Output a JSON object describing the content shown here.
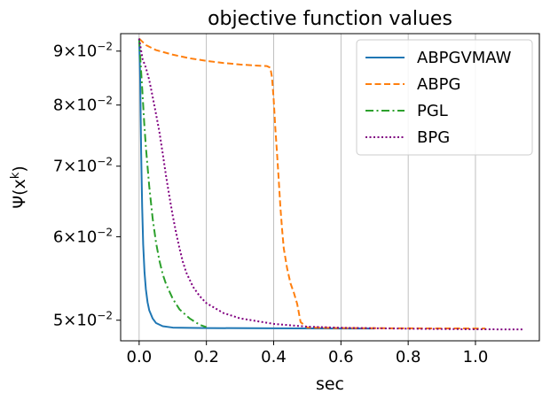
{
  "chart_data": {
    "type": "line",
    "title": "objective function values",
    "xlabel": "sec",
    "ylabel": "Ψ(x^k)",
    "ylabel_base": "Ψ(x",
    "ylabel_sup": "k",
    "ylabel_close": ")",
    "yscale": "log",
    "xlim": [
      -0.055,
      1.19
    ],
    "ylim": [
      0.0478,
      0.0935
    ],
    "grid": "x-only",
    "legend_position": "top-right",
    "x_ticks": [
      {
        "value": 0.0,
        "label": "0.0"
      },
      {
        "value": 0.2,
        "label": "0.2"
      },
      {
        "value": 0.4,
        "label": "0.4"
      },
      {
        "value": 0.6,
        "label": "0.6"
      },
      {
        "value": 0.8,
        "label": "0.8"
      },
      {
        "value": 1.0,
        "label": "1.0"
      }
    ],
    "y_ticks": [
      {
        "value": 0.09,
        "mant": "9",
        "exp": "−2"
      },
      {
        "value": 0.08,
        "mant": "8",
        "exp": "−2"
      },
      {
        "value": 0.07,
        "mant": "7",
        "exp": "−2"
      },
      {
        "value": 0.06,
        "mant": "6",
        "exp": "−2"
      },
      {
        "value": 0.05,
        "mant": "5",
        "exp": "−2"
      }
    ],
    "series": [
      {
        "name": "ABPGVMAW",
        "color": "#1f77b4",
        "dash": "solid",
        "points": [
          [
            0.0,
            0.0925
          ],
          [
            0.003,
            0.085
          ],
          [
            0.006,
            0.072
          ],
          [
            0.009,
            0.064
          ],
          [
            0.012,
            0.059
          ],
          [
            0.016,
            0.0555
          ],
          [
            0.02,
            0.0535
          ],
          [
            0.025,
            0.052
          ],
          [
            0.03,
            0.0511
          ],
          [
            0.04,
            0.0502
          ],
          [
            0.05,
            0.0497
          ],
          [
            0.07,
            0.04935
          ],
          [
            0.1,
            0.0492
          ],
          [
            0.2,
            0.04915
          ],
          [
            0.4,
            0.04912
          ],
          [
            0.6,
            0.0491
          ],
          [
            0.7,
            0.0491
          ]
        ]
      },
      {
        "name": "ABPG",
        "color": "#ff7f0e",
        "dash": "dashed",
        "points": [
          [
            0.0,
            0.0925
          ],
          [
            0.02,
            0.0912
          ],
          [
            0.05,
            0.0902
          ],
          [
            0.1,
            0.0893
          ],
          [
            0.15,
            0.0886
          ],
          [
            0.2,
            0.0881
          ],
          [
            0.25,
            0.0877
          ],
          [
            0.3,
            0.0874
          ],
          [
            0.35,
            0.0872
          ],
          [
            0.38,
            0.0871
          ],
          [
            0.39,
            0.0868
          ],
          [
            0.395,
            0.085
          ],
          [
            0.4,
            0.081
          ],
          [
            0.405,
            0.076
          ],
          [
            0.41,
            0.072
          ],
          [
            0.415,
            0.068
          ],
          [
            0.42,
            0.064
          ],
          [
            0.425,
            0.061
          ],
          [
            0.43,
            0.0585
          ],
          [
            0.44,
            0.056
          ],
          [
            0.45,
            0.0542
          ],
          [
            0.46,
            0.0531
          ],
          [
            0.47,
            0.0518
          ],
          [
            0.48,
            0.0498
          ],
          [
            0.5,
            0.0492
          ],
          [
            0.6,
            0.04915
          ],
          [
            0.8,
            0.04912
          ],
          [
            1.03,
            0.0491
          ]
        ]
      },
      {
        "name": "PGL",
        "color": "#2ca02c",
        "dash": "dashdot",
        "points": [
          [
            0.0,
            0.0925
          ],
          [
            0.005,
            0.087
          ],
          [
            0.01,
            0.082
          ],
          [
            0.015,
            0.077
          ],
          [
            0.02,
            0.073
          ],
          [
            0.03,
            0.067
          ],
          [
            0.04,
            0.0625
          ],
          [
            0.05,
            0.0593
          ],
          [
            0.06,
            0.057
          ],
          [
            0.07,
            0.0553
          ],
          [
            0.08,
            0.0541
          ],
          [
            0.1,
            0.0524
          ],
          [
            0.12,
            0.0512
          ],
          [
            0.15,
            0.0502
          ],
          [
            0.18,
            0.0495
          ],
          [
            0.2,
            0.04925
          ]
        ]
      },
      {
        "name": "BPG",
        "color": "#800080",
        "dash": "dotted",
        "points": [
          [
            0.0,
            0.0925
          ],
          [
            0.01,
            0.0885
          ],
          [
            0.02,
            0.0868
          ],
          [
            0.03,
            0.0845
          ],
          [
            0.04,
            0.0815
          ],
          [
            0.05,
            0.0785
          ],
          [
            0.06,
            0.0755
          ],
          [
            0.07,
            0.072
          ],
          [
            0.08,
            0.0685
          ],
          [
            0.09,
            0.0655
          ],
          [
            0.1,
            0.0628
          ],
          [
            0.11,
            0.0605
          ],
          [
            0.12,
            0.0585
          ],
          [
            0.13,
            0.0568
          ],
          [
            0.14,
            0.0555
          ],
          [
            0.16,
            0.0538
          ],
          [
            0.18,
            0.0527
          ],
          [
            0.2,
            0.0519
          ],
          [
            0.25,
            0.0508
          ],
          [
            0.3,
            0.0502
          ],
          [
            0.35,
            0.0499
          ],
          [
            0.4,
            0.0496
          ],
          [
            0.5,
            0.0493
          ],
          [
            0.6,
            0.04918
          ],
          [
            0.8,
            0.04908
          ],
          [
            1.0,
            0.04902
          ],
          [
            1.14,
            0.049
          ]
        ]
      }
    ]
  }
}
